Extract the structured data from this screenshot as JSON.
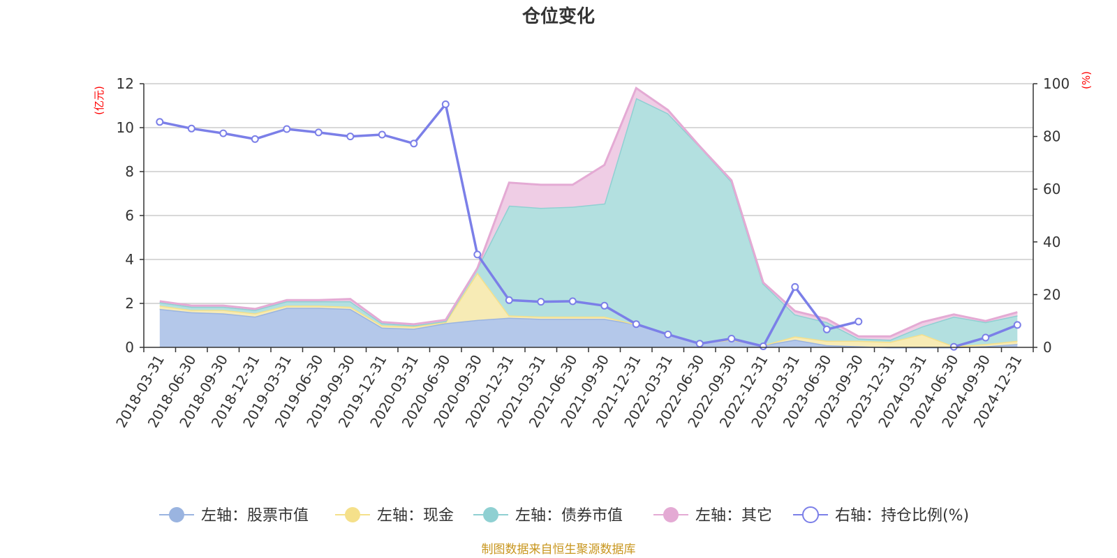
{
  "title": "仓位变化",
  "source_note": "制图数据来自恒生聚源数据库",
  "chart_data": {
    "type": "area",
    "title": "仓位变化",
    "categories": [
      "2018-03-31",
      "2018-06-30",
      "2018-09-30",
      "2018-12-31",
      "2019-03-31",
      "2019-06-30",
      "2019-09-30",
      "2019-12-31",
      "2020-03-31",
      "2020-06-30",
      "2020-09-30",
      "2020-12-31",
      "2021-03-31",
      "2021-06-30",
      "2021-09-30",
      "2021-12-31",
      "2022-03-31",
      "2022-06-30",
      "2022-09-30",
      "2022-12-31",
      "2023-03-31",
      "2023-06-30",
      "2023-09-30",
      "2023-12-31",
      "2024-03-31",
      "2024-06-30",
      "2024-09-30",
      "2024-12-31"
    ],
    "left_axis": {
      "unit": "(亿元)",
      "ylim": [
        0,
        12
      ],
      "ticks": [
        "0",
        "2",
        "4",
        "6",
        "8",
        "10",
        "12"
      ]
    },
    "right_axis": {
      "unit": "(%)",
      "ylim": [
        0,
        100
      ],
      "ticks": [
        "0",
        "20",
        "40",
        "60",
        "80",
        "100"
      ]
    },
    "grid": true,
    "legend_position": "bottom",
    "stacked_series": [
      {
        "name": "左轴：股票市值",
        "color": "#9ab4e0",
        "fill": "#b4c8ea",
        "values": [
          1.75,
          1.6,
          1.55,
          1.4,
          1.8,
          1.8,
          1.75,
          0.9,
          0.85,
          1.1,
          1.25,
          1.35,
          1.3,
          1.3,
          1.3,
          1.05,
          0.6,
          0.2,
          0.35,
          0.1,
          0.35,
          0.1,
          0.05,
          0.0,
          0.0,
          0.0,
          0.05,
          0.15
        ]
      },
      {
        "name": "左轴：现金",
        "color": "#f5e08a",
        "fill": "#f7ebb5",
        "values": [
          0.15,
          0.1,
          0.15,
          0.15,
          0.1,
          0.1,
          0.1,
          0.1,
          0.1,
          0.05,
          2.15,
          0.1,
          0.1,
          0.1,
          0.1,
          0.0,
          0.0,
          0.0,
          0.0,
          0.0,
          0.15,
          0.2,
          0.25,
          0.25,
          0.6,
          0.05,
          0.1,
          0.15
        ]
      },
      {
        "name": "左轴：债券市值",
        "color": "#8fd0d2",
        "fill": "#b3e0e0",
        "values": [
          0.15,
          0.15,
          0.15,
          0.15,
          0.2,
          0.2,
          0.25,
          0.1,
          0.05,
          0.05,
          0.2,
          5.0,
          4.95,
          5.0,
          5.15,
          10.3,
          10.05,
          8.95,
          7.2,
          2.8,
          1.0,
          0.85,
          0.1,
          0.1,
          0.35,
          1.35,
          1.0,
          1.15
        ]
      },
      {
        "name": "左轴：其它",
        "color": "#e4aad4",
        "fill": "#efcde5",
        "values": [
          0.05,
          0.05,
          0.05,
          0.05,
          0.05,
          0.05,
          0.1,
          0.05,
          0.05,
          0.05,
          0.0,
          1.05,
          1.05,
          1.0,
          1.75,
          0.45,
          0.15,
          0.0,
          0.05,
          0.05,
          0.15,
          0.15,
          0.1,
          0.15,
          0.2,
          0.1,
          0.05,
          0.15
        ]
      }
    ],
    "line_series": {
      "name": "右轴：持仓比例(%)",
      "color": "#7b7fe8",
      "values": [
        85.5,
        83,
        81.2,
        79,
        82.8,
        81.5,
        80,
        80.7,
        77.3,
        92.2,
        35.2,
        17.9,
        17.3,
        17.5,
        15.8,
        8.8,
        4.9,
        1.4,
        3.3,
        0.4,
        22.9,
        6.8,
        9.8,
        null,
        null,
        0.2,
        3.7,
        8.5
      ]
    }
  }
}
